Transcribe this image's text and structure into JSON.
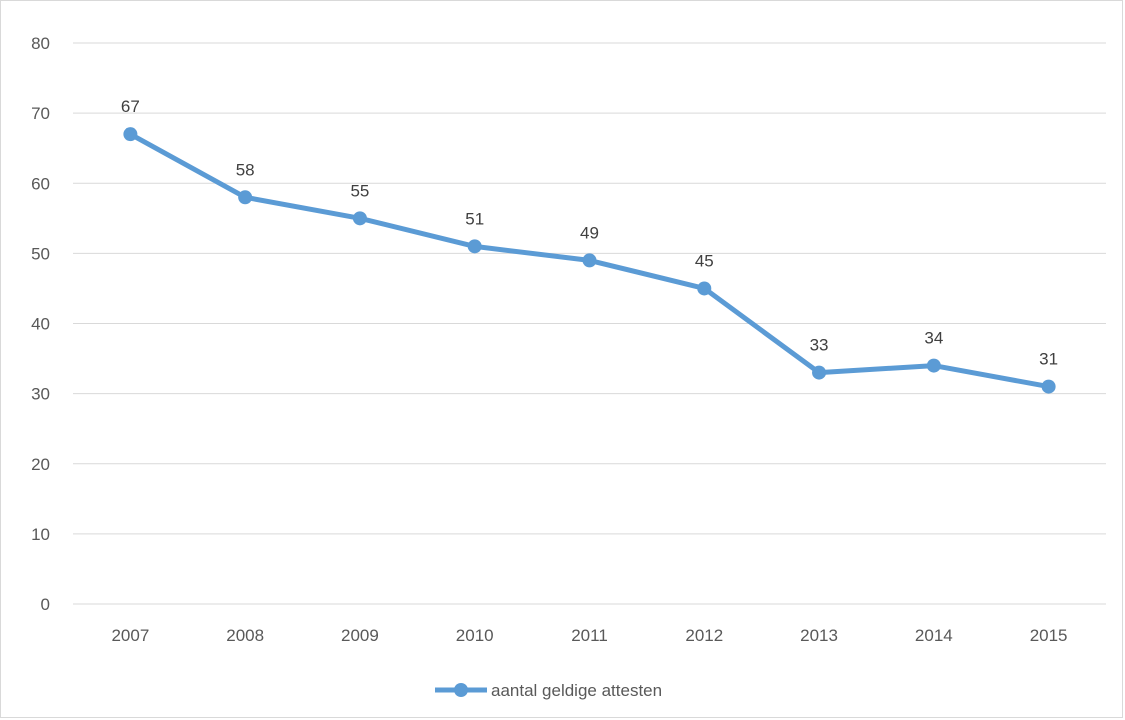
{
  "chart_data": {
    "type": "line",
    "title": "",
    "xlabel": "",
    "ylabel": "",
    "categories": [
      "2007",
      "2008",
      "2009",
      "2010",
      "2011",
      "2012",
      "2013",
      "2014",
      "2015"
    ],
    "series": [
      {
        "name": "aantal geldige attesten",
        "values": [
          67,
          58,
          55,
          51,
          49,
          45,
          33,
          34,
          31
        ],
        "color": "#5b9bd5",
        "marker": "circle",
        "data_labels": true
      }
    ],
    "ylim": [
      0,
      80
    ],
    "yticks": [
      0,
      10,
      20,
      30,
      40,
      50,
      60,
      70,
      80
    ],
    "grid": "horizontal",
    "gridColor": "#d9d9d9",
    "legend": "bottom"
  }
}
